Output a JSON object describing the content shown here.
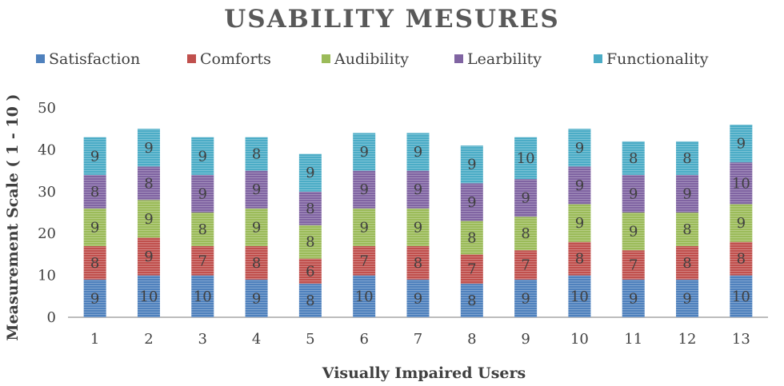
{
  "chart_data": {
    "type": "bar",
    "stacked": true,
    "title": "USABILITY MESURES",
    "xlabel": "Visually Impaired Users",
    "ylabel": "Measurement Scale ( 1 - 10 )",
    "ylim": [
      0,
      50
    ],
    "yticks": [
      0,
      10,
      20,
      30,
      40,
      50
    ],
    "categories": [
      "1",
      "2",
      "3",
      "4",
      "5",
      "6",
      "7",
      "8",
      "9",
      "10",
      "11",
      "12",
      "13"
    ],
    "legend_position": "top",
    "series": [
      {
        "name": "Satisfaction",
        "color": "#4f81bd",
        "values": [
          9,
          10,
          10,
          9,
          8,
          10,
          9,
          8,
          9,
          10,
          9,
          9,
          10
        ]
      },
      {
        "name": "Comforts",
        "color": "#c0504d",
        "values": [
          8,
          9,
          7,
          8,
          6,
          7,
          8,
          7,
          7,
          8,
          7,
          8,
          8
        ]
      },
      {
        "name": "Audibility",
        "color": "#9bbb59",
        "values": [
          9,
          9,
          8,
          9,
          8,
          9,
          9,
          8,
          8,
          9,
          9,
          8,
          9
        ]
      },
      {
        "name": "Learbility",
        "color": "#8064a2",
        "values": [
          8,
          8,
          9,
          9,
          8,
          9,
          9,
          9,
          9,
          9,
          9,
          9,
          10
        ]
      },
      {
        "name": "Functionality",
        "color": "#4bacc6",
        "values": [
          9,
          9,
          9,
          8,
          9,
          9,
          9,
          9,
          10,
          9,
          8,
          8,
          9
        ]
      }
    ],
    "grid": false
  }
}
